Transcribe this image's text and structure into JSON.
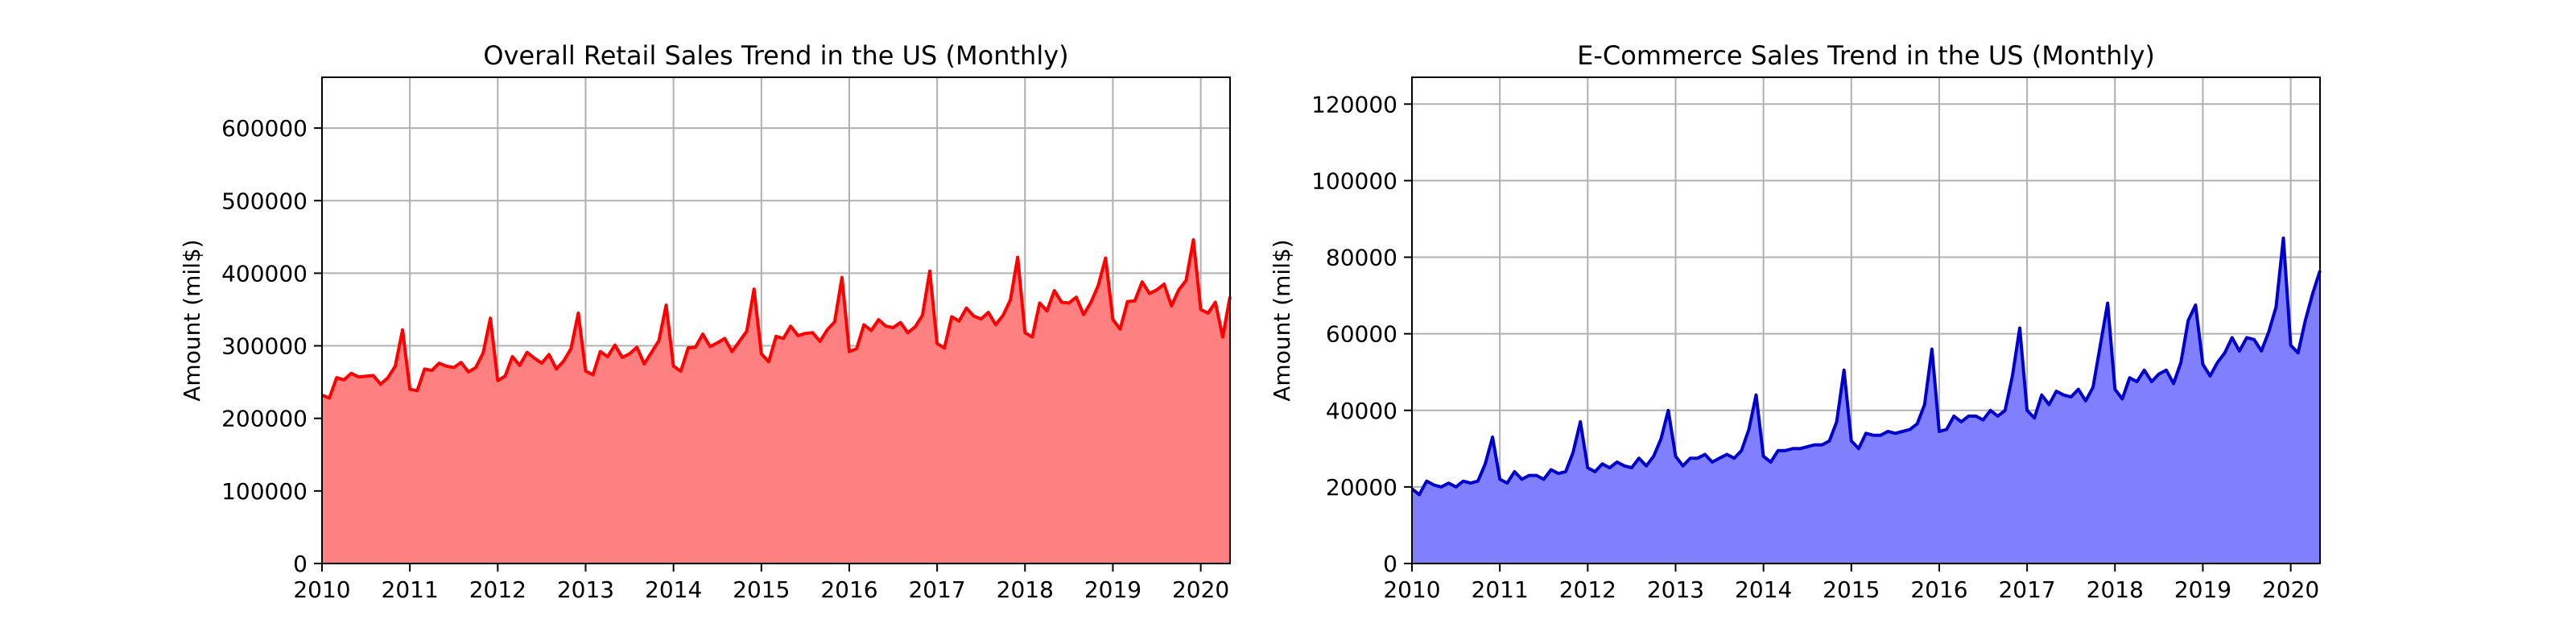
{
  "chart_data": [
    {
      "type": "area",
      "title": "Overall Retail Sales Trend in the US (Monthly)",
      "xlabel": "",
      "ylabel": "Amount (mil$)",
      "xlim": [
        "2010-01",
        "2020-05"
      ],
      "ylim": [
        0,
        670000
      ],
      "xticks": [
        "2010",
        "2011",
        "2012",
        "2013",
        "2014",
        "2015",
        "2016",
        "2017",
        "2018",
        "2019",
        "2020"
      ],
      "yticks": [
        0,
        100000,
        200000,
        300000,
        400000,
        500000,
        600000
      ],
      "grid": true,
      "line_color": "#ff0000",
      "fill_color": "#ff8080",
      "start_month": "2010-01",
      "values": [
        232000,
        228000,
        256000,
        253000,
        262000,
        257000,
        258000,
        259000,
        247000,
        256000,
        272000,
        322000,
        240000,
        238000,
        268000,
        266000,
        276000,
        272000,
        270000,
        277000,
        264000,
        270000,
        290000,
        338000,
        252000,
        258000,
        285000,
        273000,
        291000,
        283000,
        276000,
        288000,
        268000,
        279000,
        296000,
        345000,
        265000,
        260000,
        292000,
        285000,
        301000,
        284000,
        289000,
        298000,
        275000,
        291000,
        307000,
        356000,
        272000,
        265000,
        297000,
        298000,
        316000,
        299000,
        304000,
        310000,
        292000,
        306000,
        320000,
        378000,
        289000,
        278000,
        313000,
        310000,
        327000,
        314000,
        317000,
        318000,
        306000,
        322000,
        333000,
        394000,
        292000,
        296000,
        329000,
        321000,
        336000,
        327000,
        325000,
        332000,
        318000,
        326000,
        342000,
        403000,
        303000,
        297000,
        340000,
        334000,
        352000,
        341000,
        337000,
        346000,
        329000,
        342000,
        363000,
        422000,
        318000,
        312000,
        359000,
        348000,
        376000,
        360000,
        359000,
        367000,
        343000,
        360000,
        383000,
        421000,
        336000,
        323000,
        361000,
        362000,
        388000,
        372000,
        377000,
        385000,
        355000,
        377000,
        390000,
        446000,
        350000,
        345000,
        360000,
        312000,
        368000
      ]
    },
    {
      "type": "area",
      "title": "E-Commerce Sales Trend in the US (Monthly)",
      "xlabel": "",
      "ylabel": "Amount (mil$)",
      "xlim": [
        "2010-01",
        "2020-05"
      ],
      "ylim": [
        0,
        127000
      ],
      "xticks": [
        "2010",
        "2011",
        "2012",
        "2013",
        "2014",
        "2015",
        "2016",
        "2017",
        "2018",
        "2019",
        "2020"
      ],
      "yticks": [
        0,
        20000,
        40000,
        60000,
        80000,
        100000,
        120000
      ],
      "grid": true,
      "line_color": "#0000cc",
      "fill_color": "#8080ff",
      "start_month": "2010-01",
      "values": [
        19500,
        18000,
        21500,
        20500,
        20000,
        21000,
        20000,
        21500,
        21000,
        21500,
        26000,
        33000,
        22000,
        21000,
        24000,
        22000,
        23000,
        23000,
        22000,
        24500,
        23500,
        24000,
        29000,
        37000,
        25000,
        24000,
        26000,
        25000,
        26500,
        25500,
        25000,
        27500,
        25500,
        28000,
        32500,
        40000,
        28000,
        25500,
        27500,
        27500,
        28500,
        26500,
        27500,
        28500,
        27500,
        29500,
        35000,
        44000,
        28000,
        26500,
        29500,
        29500,
        30000,
        30000,
        30500,
        31000,
        31000,
        32000,
        37000,
        50500,
        32000,
        30000,
        34000,
        33500,
        33500,
        34500,
        34000,
        34500,
        35000,
        36500,
        41500,
        56000,
        34500,
        35000,
        38500,
        37000,
        38500,
        38500,
        37500,
        40000,
        38500,
        40000,
        49000,
        61500,
        40000,
        38000,
        44000,
        41500,
        45000,
        44000,
        43500,
        45500,
        42500,
        46000,
        57000,
        68000,
        45500,
        43000,
        48500,
        47500,
        50500,
        47500,
        49500,
        50500,
        47000,
        52500,
        63500,
        67500,
        52000,
        49000,
        52500,
        55000,
        59000,
        55500,
        59000,
        58500,
        55500,
        60500,
        67000,
        85000,
        57000,
        55000,
        63500,
        70500,
        76500
      ]
    }
  ]
}
